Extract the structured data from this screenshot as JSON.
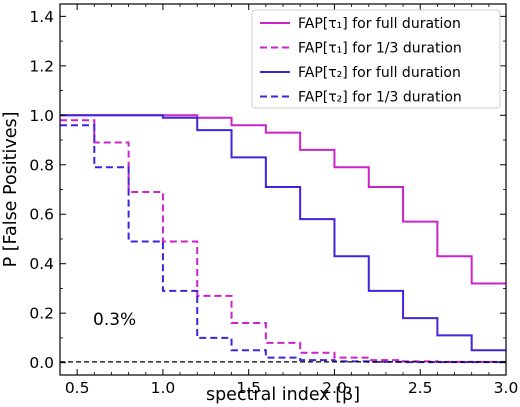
{
  "chart_data": {
    "type": "line",
    "title": "",
    "xlabel": "spectral index [β]",
    "ylabel": "P [False Positives]",
    "xlim": [
      0.4,
      3.0
    ],
    "ylim": [
      -0.05,
      1.45
    ],
    "xticks": [
      0.5,
      1.0,
      1.5,
      2.0,
      2.5,
      3.0
    ],
    "xtick_labels": [
      "0.5",
      "1.0",
      "1.5",
      "2.0",
      "2.5",
      "3.0"
    ],
    "yticks": [
      0.0,
      0.2,
      0.4,
      0.6,
      0.8,
      1.0,
      1.2,
      1.4
    ],
    "ytick_labels": [
      "0.0",
      "0.2",
      "0.4",
      "0.6",
      "0.8",
      "1.0",
      "1.2",
      "1.4"
    ],
    "grid": false,
    "legend_position": "top-right",
    "step": "post",
    "x": [
      0.4,
      0.6,
      0.8,
      1.0,
      1.2,
      1.4,
      1.6,
      1.8,
      2.0,
      2.2,
      2.4,
      2.6,
      2.8,
      3.0
    ],
    "series": [
      {
        "name": "FAP[τ₁] for full duration",
        "color": "#cc22cc",
        "dash": "solid",
        "values": [
          1.0,
          1.0,
          1.0,
          1.0,
          0.99,
          0.96,
          0.93,
          0.86,
          0.79,
          0.71,
          0.57,
          0.43,
          0.32,
          0.32
        ]
      },
      {
        "name": "FAP[τ₁] for 1/3 duration",
        "color": "#cc22cc",
        "dash": "dashed",
        "values": [
          0.98,
          0.89,
          0.69,
          0.49,
          0.27,
          0.16,
          0.08,
          0.04,
          0.02,
          0.01,
          0.005,
          0.003,
          0.003,
          0.003
        ]
      },
      {
        "name": "FAP[τ₂] for full duration",
        "color": "#4422dd",
        "dash": "solid",
        "values": [
          1.0,
          1.0,
          1.0,
          0.99,
          0.94,
          0.83,
          0.71,
          0.58,
          0.43,
          0.29,
          0.18,
          0.11,
          0.05,
          0.05
        ]
      },
      {
        "name": "FAP[τ₂] for 1/3 duration",
        "color": "#4422dd",
        "dash": "dashed",
        "values": [
          0.96,
          0.79,
          0.49,
          0.29,
          0.1,
          0.05,
          0.02,
          0.01,
          0.005,
          0.003,
          0.002,
          0.002,
          0.002,
          0.002
        ]
      }
    ],
    "threshold": {
      "value": 0.003,
      "label": "0.3%",
      "color": "#000000"
    }
  }
}
